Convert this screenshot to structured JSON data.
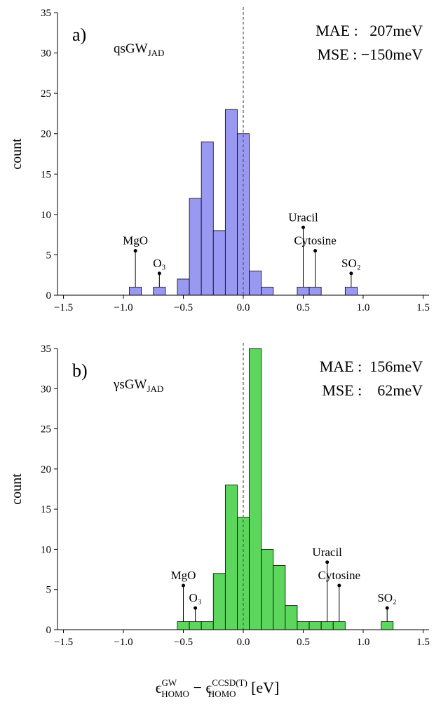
{
  "chart_data": [
    {
      "type": "histogram",
      "panel": "a)",
      "title": {
        "text": "qsGW",
        "subscript": "JAD"
      },
      "stats": [
        "MAE :   207meV",
        "MSE : −150meV"
      ],
      "ylabel": "count",
      "color": "#9999f2",
      "bins": [
        -0.95,
        -0.85,
        -0.75,
        -0.65,
        -0.55,
        -0.45,
        -0.35,
        -0.25,
        -0.15,
        -0.05,
        0.05,
        0.15,
        0.25,
        0.35,
        0.45,
        0.55,
        0.65,
        0.75,
        0.85,
        0.95
      ],
      "counts": [
        1,
        0,
        1,
        0,
        2,
        12,
        19,
        8,
        23,
        20,
        3,
        1,
        0,
        0,
        1,
        1,
        0,
        0,
        1
      ],
      "vline": 0,
      "annotations": [
        {
          "text": "MgO",
          "x": -0.9,
          "y": 5.5
        },
        {
          "text": "O₃",
          "x": -0.7,
          "y": 2.7
        },
        {
          "text": "Uracil",
          "x": 0.5,
          "y": 8.4
        },
        {
          "text": "Cytosine",
          "x": 0.6,
          "y": 5.5
        },
        {
          "text": "SO₂",
          "x": 0.9,
          "y": 2.7
        }
      ],
      "xlim": [
        -1.55,
        1.55
      ],
      "ylim": [
        0,
        35
      ],
      "xticks": [
        {
          "value": -1.5,
          "label": "−1.5"
        },
        {
          "value": -1.0,
          "label": "−1.0"
        },
        {
          "value": -0.5,
          "label": "−0.5"
        },
        {
          "value": 0,
          "label": "0.0"
        },
        0.5,
        {
          "value": 1.0,
          "label": "1.0"
        },
        1.5
      ],
      "yticks": [
        0,
        5,
        10,
        15,
        20,
        25,
        30,
        35
      ]
    },
    {
      "type": "histogram",
      "panel": "b)",
      "title": {
        "text": "γsGW",
        "subscript": "JAD"
      },
      "stats": [
        "MAE :  156meV",
        "MSE :    62meV"
      ],
      "ylabel": "count",
      "color": "#5dd65d",
      "bins": [
        -0.55,
        -0.45,
        -0.35,
        -0.25,
        -0.15,
        -0.05,
        0.05,
        0.15,
        0.25,
        0.35,
        0.45,
        0.55,
        0.65,
        0.75,
        0.85,
        0.95,
        1.05,
        1.15,
        1.25
      ],
      "counts": [
        1,
        1,
        1,
        7,
        18,
        14,
        35,
        10,
        8,
        3,
        1,
        1,
        1,
        1,
        0,
        0,
        0,
        1
      ],
      "vline": 0,
      "annotations": [
        {
          "text": "MgO",
          "x": -0.5,
          "y": 5.5
        },
        {
          "text": "O₃",
          "x": -0.4,
          "y": 2.7
        },
        {
          "text": "Uracil",
          "x": 0.7,
          "y": 8.4
        },
        {
          "text": "Cytosine",
          "x": 0.8,
          "y": 5.5
        },
        {
          "text": "SO₂",
          "x": 1.2,
          "y": 2.7
        }
      ],
      "xlim": [
        -1.55,
        1.55
      ],
      "ylim": [
        0,
        35
      ],
      "xticks": [
        {
          "value": -1.5,
          "label": "−1.5"
        },
        {
          "value": -1.0,
          "label": "−1.0"
        },
        {
          "value": -0.5,
          "label": "−0.5"
        },
        {
          "value": 0,
          "label": "0.0"
        },
        0.5,
        {
          "value": 1.0,
          "label": "1.0"
        },
        1.5
      ],
      "yticks": [
        0,
        5,
        10,
        15,
        20,
        25,
        30,
        35
      ],
      "xlabel": {
        "symbol": "ϵ",
        "sup1": "GW",
        "sub1": "HOMO",
        "minus": " − ",
        "symbol2": "ϵ",
        "sup2": "CCSD(T)",
        "sub2": "HOMO",
        "unit": " [eV]"
      }
    }
  ]
}
